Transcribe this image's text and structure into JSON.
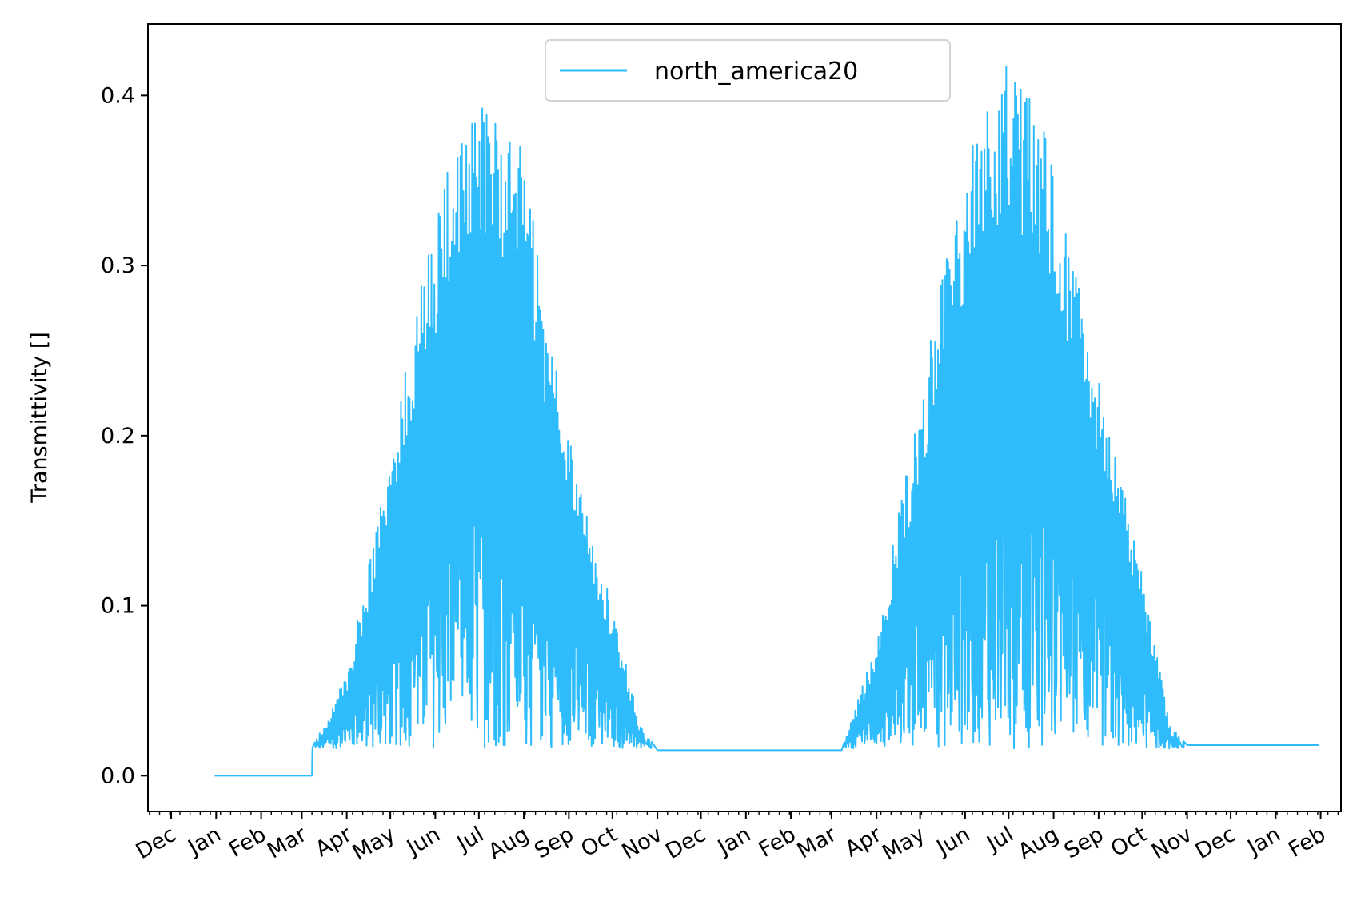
{
  "chart_data": {
    "type": "line",
    "title": "",
    "xlabel": "",
    "ylabel": "Transmittivity []",
    "ylim": [
      -0.021,
      0.442
    ],
    "xlim": [
      "2020-11-15",
      "2023-02-15"
    ],
    "y_ticks": [
      0.0,
      0.1,
      0.2,
      0.3,
      0.4
    ],
    "y_tick_labels": [
      "0.0",
      "0.1",
      "0.2",
      "0.3",
      "0.4"
    ],
    "x_ticks": [
      "2020-12-01",
      "2021-01-01",
      "2021-02-01",
      "2021-03-01",
      "2021-04-01",
      "2021-05-01",
      "2021-06-01",
      "2021-07-01",
      "2021-08-01",
      "2021-09-01",
      "2021-10-01",
      "2021-11-01",
      "2021-12-01",
      "2022-01-01",
      "2022-02-01",
      "2022-03-01",
      "2022-04-01",
      "2022-05-01",
      "2022-06-01",
      "2022-07-01",
      "2022-08-01",
      "2022-09-01",
      "2022-10-01",
      "2022-11-01",
      "2022-12-01",
      "2023-01-01",
      "2023-02-01"
    ],
    "x_tick_labels": [
      "Dec",
      "Jan",
      "Feb",
      "Mar",
      "Apr",
      "May",
      "Jun",
      "Jul",
      "Aug",
      "Sep",
      "Oct",
      "Nov",
      "Dec",
      "Jan",
      "Feb",
      "Mar",
      "Apr",
      "May",
      "Jun",
      "Jul",
      "Aug",
      "Sep",
      "Oct",
      "Nov",
      "Dec",
      "Jan",
      "Feb"
    ],
    "grid": false,
    "legend_position": "top-center",
    "series": [
      {
        "name": "north_america20",
        "color": "#2ebcfc",
        "points": [
          {
            "x": "2020-12-31",
            "y": 0.0
          },
          {
            "x": "2021-03-08",
            "y": 0.0
          },
          {
            "x": "2021-03-08",
            "y": 0.016
          },
          {
            "x": "2021-04-01",
            "y": 0.06
          },
          {
            "x": "2021-04-15",
            "y": 0.12
          },
          {
            "x": "2021-05-01",
            "y": 0.19
          },
          {
            "x": "2021-05-15",
            "y": 0.26
          },
          {
            "x": "2021-06-01",
            "y": 0.33
          },
          {
            "x": "2021-06-15",
            "y": 0.39
          },
          {
            "x": "2021-07-01",
            "y": 0.41
          },
          {
            "x": "2021-07-15",
            "y": 0.39
          },
          {
            "x": "2021-08-01",
            "y": 0.37
          },
          {
            "x": "2021-08-15",
            "y": 0.28
          },
          {
            "x": "2021-09-01",
            "y": 0.2
          },
          {
            "x": "2021-09-15",
            "y": 0.15
          },
          {
            "x": "2021-10-01",
            "y": 0.1
          },
          {
            "x": "2021-10-20",
            "y": 0.03
          },
          {
            "x": "2021-11-01",
            "y": 0.015
          },
          {
            "x": "2022-03-08",
            "y": 0.015
          },
          {
            "x": "2022-04-01",
            "y": 0.08
          },
          {
            "x": "2022-04-15",
            "y": 0.15
          },
          {
            "x": "2022-05-01",
            "y": 0.22
          },
          {
            "x": "2022-05-15",
            "y": 0.29
          },
          {
            "x": "2022-06-01",
            "y": 0.36
          },
          {
            "x": "2022-06-15",
            "y": 0.4
          },
          {
            "x": "2022-07-01",
            "y": 0.42
          },
          {
            "x": "2022-07-15",
            "y": 0.4
          },
          {
            "x": "2022-08-01",
            "y": 0.37
          },
          {
            "x": "2022-08-15",
            "y": 0.3
          },
          {
            "x": "2022-09-01",
            "y": 0.24
          },
          {
            "x": "2022-09-15",
            "y": 0.18
          },
          {
            "x": "2022-10-01",
            "y": 0.12
          },
          {
            "x": "2022-10-20",
            "y": 0.03
          },
          {
            "x": "2022-11-01",
            "y": 0.018
          },
          {
            "x": "2023-01-31",
            "y": 0.018
          }
        ]
      }
    ]
  }
}
